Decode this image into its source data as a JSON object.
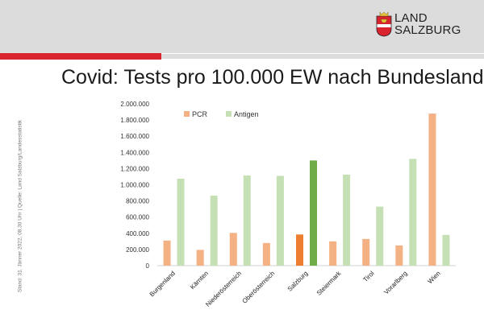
{
  "header": {
    "logo_line1": "LAND",
    "logo_line2": "SALZBURG",
    "title": "Covid: Tests pro 100.000 EW nach Bundesland"
  },
  "side_note": "Stand: 31. Jänner 2022, 08.30 Uhr | Quelle: Land Salzburg/Landesstatistik",
  "colors": {
    "brand_red": "#d9232e",
    "pcr": "#f4b183",
    "antigen": "#c5e0b4",
    "pcr_highlight": "#ed7d31",
    "antigen_highlight": "#70ad47"
  },
  "chart_data": {
    "type": "bar",
    "title": "Covid: Tests pro 100.000 EW nach Bundesland",
    "categories": [
      "Burgenland",
      "Kärnten",
      "Niederösterreich",
      "Oberösterreich",
      "Salzburg",
      "Steiermark",
      "Tirol",
      "Vorarlberg",
      "Wien"
    ],
    "series": [
      {
        "name": "PCR",
        "values": [
          310000,
          195000,
          405000,
          280000,
          385000,
          300000,
          330000,
          250000,
          1880000
        ]
      },
      {
        "name": "Antigen",
        "values": [
          1075000,
          865000,
          1115000,
          1110000,
          1300000,
          1125000,
          730000,
          1320000,
          380000
        ]
      }
    ],
    "highlight_category": "Salzburg",
    "ylim": [
      0,
      2000000
    ],
    "yticks": [
      0,
      200000,
      400000,
      600000,
      800000,
      1000000,
      1200000,
      1400000,
      1600000,
      1800000,
      2000000
    ],
    "ytick_labels": [
      "0",
      "200.000",
      "400.000",
      "600.000",
      "800.000",
      "1.000.000",
      "1.200.000",
      "1.400.000",
      "1.600.000",
      "1.800.000",
      "2.000.000"
    ],
    "xlabel": "",
    "ylabel": "",
    "legend_position": "top-left",
    "grid": false
  }
}
